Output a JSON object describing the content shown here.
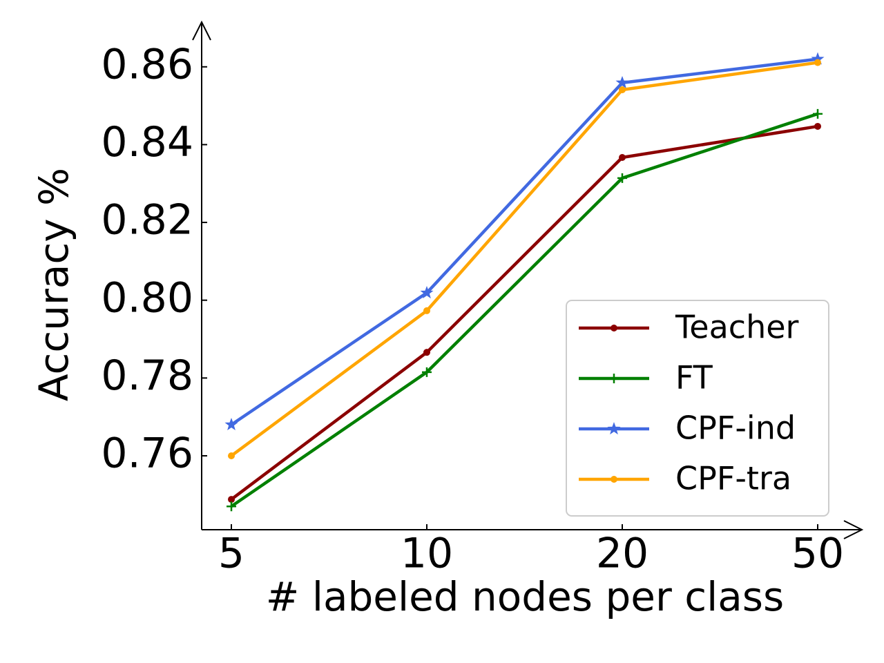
{
  "chart_data": {
    "type": "line",
    "x_label": "# labeled nodes per class",
    "y_label": "Accuracy %",
    "categories": [
      "5",
      "10",
      "20",
      "50"
    ],
    "series": [
      {
        "name": "Teacher",
        "color": "#8b0000",
        "marker": "circle",
        "values": [
          0.7488,
          0.7866,
          0.8367,
          0.8447
        ]
      },
      {
        "name": "FT",
        "color": "#008000",
        "marker": "plus",
        "values": [
          0.747,
          0.7815,
          0.8314,
          0.8479
        ]
      },
      {
        "name": "CPF-ind",
        "color": "#4169e1",
        "marker": "star",
        "values": [
          0.768,
          0.8019,
          0.8559,
          0.862
        ]
      },
      {
        "name": "CPF-tra",
        "color": "#ffa500",
        "marker": "circle",
        "values": [
          0.76,
          0.7973,
          0.8541,
          0.8611
        ]
      }
    ],
    "ylim": [
      0.741,
      0.8715
    ],
    "yticks": [
      0.76,
      0.78,
      {
        "value": 0.8,
        "label": "0.80"
      },
      0.82,
      0.84,
      0.86
    ],
    "legend": "lower right"
  }
}
